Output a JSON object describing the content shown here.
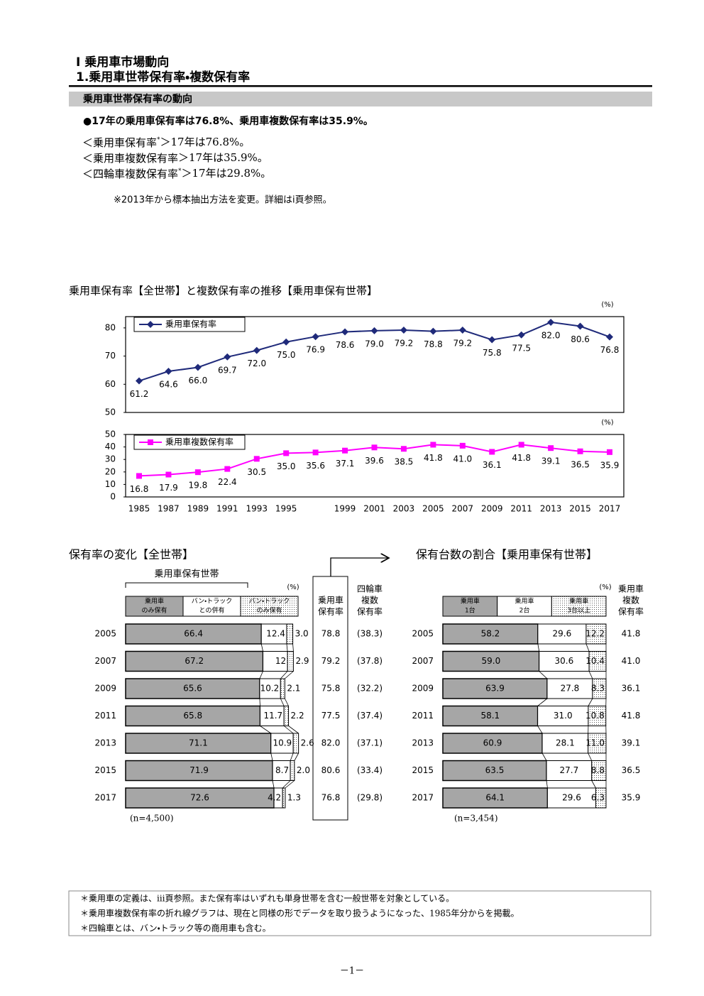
{
  "header": {
    "chapter": "Ⅰ 乗用車市場動向",
    "section": "1.乗用車世帯保有率・複数保有率",
    "band": "乗用車世帯保有率の動向"
  },
  "summary": {
    "headline": "●17年の乗用車保有率は76.8%、乗用車複数保有率は35.9%。",
    "items": [
      {
        "label": "＜乗用車保有率",
        "mark": "*",
        "text": "＞17年は76.8%。"
      },
      {
        "label": "＜乗用車複数保有率",
        "text": "＞17年は35.9%。"
      },
      {
        "label": "＜四輪車複数保有率",
        "mark": "*",
        "text": "＞17年は29.8%。"
      }
    ],
    "note": "※2013年から標本抽出方法を変更。詳細はⅰ頁参照。"
  },
  "chart_data": [
    {
      "type": "line",
      "title": "乗用車保有率【全世帯】と複数保有率の推移【乗用車保有世帯】",
      "categories": [
        "1985",
        "1987",
        "1989",
        "1991",
        "1993",
        "1995",
        null,
        "1999",
        "2001",
        "2003",
        "2005",
        "2007",
        "2009",
        "2011",
        "2013",
        "2015",
        "2017"
      ],
      "panels": [
        {
          "unit": "(%)",
          "ylim": [
            50,
            84
          ],
          "yticks": [
            50,
            60,
            70,
            80
          ],
          "legend": "upper left",
          "series": [
            {
              "name": "乗用車保有率",
              "color": "#1f2a7a",
              "marker": "diamond",
              "values": [
                61.2,
                64.6,
                66.0,
                69.7,
                72.0,
                75.0,
                76.9,
                78.6,
                79.0,
                79.2,
                78.8,
                79.2,
                75.8,
                77.5,
                82.0,
                80.6,
                76.8
              ],
              "value_labels": [
                "61.2",
                "64.6",
                "66.0",
                "69.7",
                "72.0",
                "75.0",
                "76.9",
                "78.6",
                "79.0",
                "79.2",
                "78.8",
                "79.2",
                "75.8",
                "77.5",
                "82.0",
                "80.6",
                "76.8"
              ]
            }
          ]
        },
        {
          "unit": "(%)",
          "ylim": [
            0,
            50
          ],
          "yticks": [
            0,
            10,
            20,
            30,
            40,
            50
          ],
          "legend": "upper left",
          "series": [
            {
              "name": "乗用車複数保有率",
              "color": "#ff00ff",
              "marker": "square",
              "values": [
                16.8,
                17.9,
                19.8,
                22.4,
                30.5,
                35.0,
                35.6,
                37.1,
                39.6,
                38.5,
                41.8,
                41.0,
                36.1,
                41.8,
                39.1,
                36.5,
                35.9
              ],
              "value_labels": [
                "16.8",
                "17.9",
                "19.8",
                "22.4",
                "30.5",
                "35.0",
                "35.6",
                "37.1",
                "39.6",
                "38.5",
                "41.8",
                "41.0",
                "36.1",
                "41.8",
                "39.1",
                "36.5",
                "35.9"
              ]
            }
          ]
        }
      ]
    },
    {
      "type": "stacked_bar",
      "title": "保有率の変化【全世帯】",
      "group_label": "乗用車保有世帯",
      "unit": "(%)",
      "categories": [
        "2005",
        "2007",
        "2009",
        "2011",
        "2013",
        "2015",
        "2017"
      ],
      "series": [
        {
          "name": [
            "乗用車",
            "のみ保有"
          ],
          "color": "#a6a6a6",
          "values": [
            66.4,
            67.2,
            65.6,
            65.8,
            71.1,
            71.9,
            72.6
          ],
          "value_labels": [
            "66.4",
            "67.2",
            "65.6",
            "65.8",
            "71.1",
            "71.9",
            "72.6"
          ]
        },
        {
          "name": [
            "バン・トラック",
            "との併有"
          ],
          "color": "#ffffff",
          "values": [
            12.4,
            12,
            10.2,
            11.7,
            10.9,
            8.7,
            4.2
          ],
          "value_labels": [
            "12.4",
            "12",
            "10.2",
            "11.7",
            "10.9",
            "8.7",
            "4.2"
          ]
        },
        {
          "name": [
            "バン・トラック",
            "のみ保有"
          ],
          "color": "#ffffff",
          "pattern": "dots",
          "values": [
            3.0,
            2.9,
            2.1,
            2.2,
            2.6,
            2.0,
            1.3
          ],
          "value_labels": [
            "3.0",
            "2.9",
            "2.1",
            "2.2",
            "2.6",
            "2.0",
            "1.3"
          ]
        }
      ],
      "columns": [
        {
          "name": [
            "乗用車",
            "保有率"
          ],
          "values": [
            78.8,
            79.2,
            75.8,
            77.5,
            82.0,
            80.6,
            76.8
          ],
          "value_labels": [
            "78.8",
            "79.2",
            "75.8",
            "77.5",
            "82.0",
            "80.6",
            "76.8"
          ]
        },
        {
          "name": [
            "四輪車",
            "複数",
            "保有率"
          ],
          "values": [
            38.3,
            37.8,
            32.2,
            37.4,
            37.1,
            33.4,
            29.8
          ],
          "value_labels": [
            "(38.3)",
            "(37.8)",
            "(32.2)",
            "(37.4)",
            "(37.1)",
            "(33.4)",
            "(29.8)"
          ]
        }
      ],
      "sample": "(n=4,500)"
    },
    {
      "type": "stacked_bar",
      "title": "保有台数の割合【乗用車保有世帯】",
      "unit": "(%)",
      "categories": [
        "2005",
        "2007",
        "2009",
        "2011",
        "2013",
        "2015",
        "2017"
      ],
      "series": [
        {
          "name": [
            "乗用車",
            "1台"
          ],
          "color": "#a6a6a6",
          "values": [
            58.2,
            59.0,
            63.9,
            58.1,
            60.9,
            63.5,
            64.1
          ],
          "value_labels": [
            "58.2",
            "59.0",
            "63.9",
            "58.1",
            "60.9",
            "63.5",
            "64.1"
          ]
        },
        {
          "name": [
            "乗用車",
            "2台"
          ],
          "color": "#ffffff",
          "values": [
            29.6,
            30.6,
            27.8,
            31.0,
            28.1,
            27.7,
            29.6
          ],
          "value_labels": [
            "29.6",
            "30.6",
            "27.8",
            "31.0",
            "28.1",
            "27.7",
            "29.6"
          ]
        },
        {
          "name": [
            "乗用車",
            "3台以上"
          ],
          "color": "#ffffff",
          "pattern": "dots",
          "values": [
            12.2,
            10.4,
            8.3,
            10.8,
            11.0,
            8.8,
            6.3
          ],
          "value_labels": [
            "12.2",
            "10.4",
            "8.3",
            "10.8",
            "11.0",
            "8.8",
            "6.3"
          ]
        }
      ],
      "columns": [
        {
          "name": [
            "乗用車",
            "複数",
            "保有率"
          ],
          "values": [
            41.8,
            41.0,
            36.1,
            41.8,
            39.1,
            36.5,
            35.9
          ],
          "value_labels": [
            "41.8",
            "41.0",
            "36.1",
            "41.8",
            "39.1",
            "36.5",
            "35.9"
          ]
        }
      ],
      "sample": "(n=3,454)"
    }
  ],
  "footnotes": [
    "＊乗用車の定義は、ⅲ頁参照。また保有率はいずれも単身世帯を含む一般世帯を対象としている。",
    "＊乗用車複数保有率の折れ線グラフは、現在と同様の形でデータを取り扱うようになった、1985年分からを掲載。",
    "＊四輪車とは、バン・トラック等の商用車も含む。"
  ],
  "page_number": "－1－"
}
